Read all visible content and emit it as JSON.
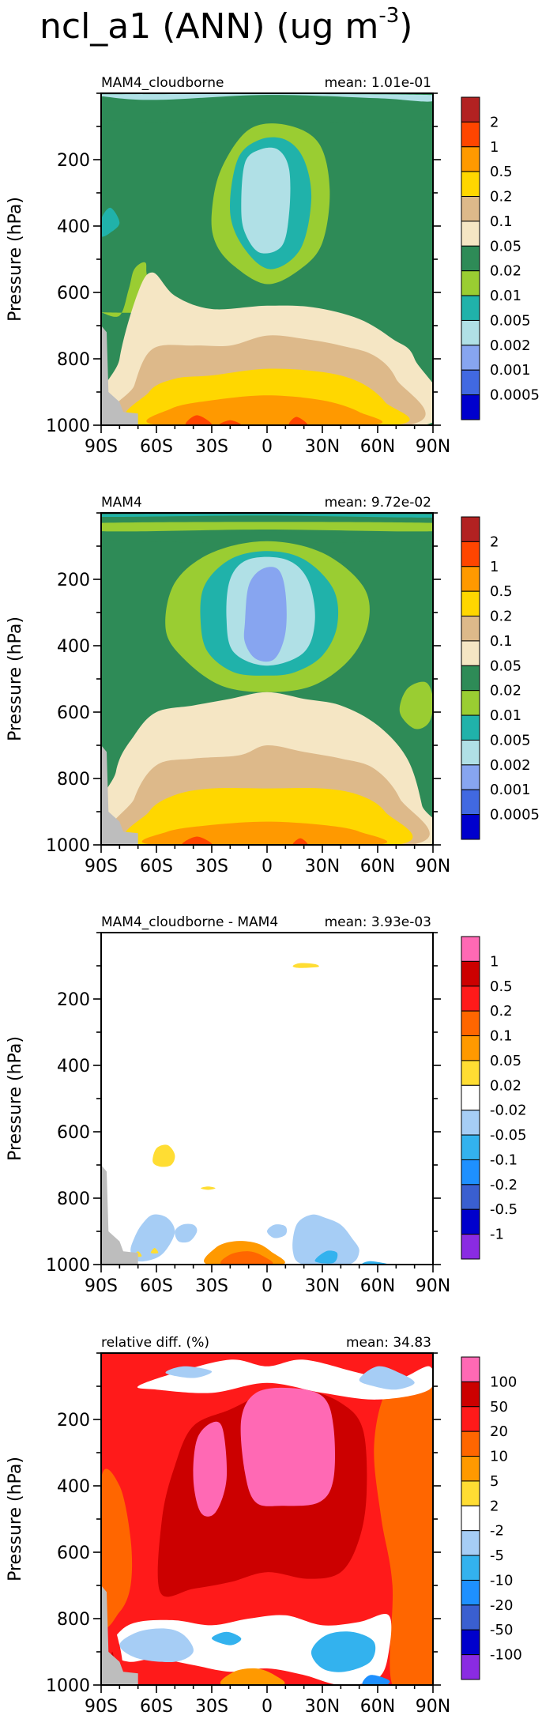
{
  "figure": {
    "title_main": "ncl_a1 (ANN) (ug m",
    "title_exp": "-3",
    "title_close": ")"
  },
  "shared_axes": {
    "ylabel": "Pressure (hPa)",
    "yticks": [
      200,
      400,
      600,
      800,
      1000
    ],
    "xticks": [
      "90S",
      "60S",
      "30S",
      "0",
      "30N",
      "60N",
      "90N"
    ]
  },
  "chart_data": [
    {
      "type": "contour",
      "subtitle_left": "MAM4_cloudborne",
      "subtitle_right": "mean: 1.01e-01",
      "xlabel": "",
      "ylabel": "Pressure (hPa)",
      "x_range": [
        "90S",
        "90N"
      ],
      "y_range": [
        1000,
        0
      ],
      "yticks": [
        200,
        400,
        600,
        800,
        1000
      ],
      "xticks": [
        "90S",
        "60S",
        "30S",
        "0",
        "30N",
        "60N",
        "90N"
      ],
      "colorbar_levels": [
        "2",
        "1",
        "0.5",
        "0.2",
        "0.1",
        "0.05",
        "0.02",
        "0.01",
        "0.005",
        "0.002",
        "0.001",
        "0.0005"
      ],
      "colorbar_colors": [
        "#b22222",
        "#ff4500",
        "#ff9900",
        "#ffd700",
        "#ddb98a",
        "#f5e6c4",
        "#2e8b57",
        "#9acd32",
        "#20b2aa",
        "#b0e0e6",
        "#87a5f0",
        "#4169e1",
        "#0000cd"
      ],
      "background_color": "#2e8b57"
    },
    {
      "type": "contour",
      "subtitle_left": "MAM4",
      "subtitle_right": "mean: 9.72e-02",
      "xlabel": "",
      "ylabel": "Pressure (hPa)",
      "x_range": [
        "90S",
        "90N"
      ],
      "y_range": [
        1000,
        0
      ],
      "yticks": [
        200,
        400,
        600,
        800,
        1000
      ],
      "xticks": [
        "90S",
        "60S",
        "30S",
        "0",
        "30N",
        "60N",
        "90N"
      ],
      "colorbar_levels": [
        "2",
        "1",
        "0.5",
        "0.2",
        "0.1",
        "0.05",
        "0.02",
        "0.01",
        "0.005",
        "0.002",
        "0.001",
        "0.0005"
      ],
      "colorbar_colors": [
        "#b22222",
        "#ff4500",
        "#ff9900",
        "#ffd700",
        "#ddb98a",
        "#f5e6c4",
        "#2e8b57",
        "#9acd32",
        "#20b2aa",
        "#b0e0e6",
        "#87a5f0",
        "#4169e1",
        "#0000cd"
      ],
      "background_color": "#2e8b57"
    },
    {
      "type": "contour",
      "subtitle_left": "MAM4_cloudborne - MAM4",
      "subtitle_right": "mean: 3.93e-03",
      "xlabel": "",
      "ylabel": "Pressure (hPa)",
      "x_range": [
        "90S",
        "90N"
      ],
      "y_range": [
        1000,
        0
      ],
      "yticks": [
        200,
        400,
        600,
        800,
        1000
      ],
      "xticks": [
        "90S",
        "60S",
        "30S",
        "0",
        "30N",
        "60N",
        "90N"
      ],
      "colorbar_levels": [
        "1",
        "0.5",
        "0.2",
        "0.1",
        "0.05",
        "0.02",
        "-0.02",
        "-0.05",
        "-0.1",
        "-0.2",
        "-0.5",
        "-1"
      ],
      "colorbar_colors": [
        "#ff69b4",
        "#cc0000",
        "#ff1a1a",
        "#ff6600",
        "#ff9900",
        "#ffdd33",
        "#ffffff",
        "#a6cdf5",
        "#33b2ee",
        "#1e90ff",
        "#3a5fd0",
        "#0000cc",
        "#8a2be2"
      ],
      "background_color": "#ffffff"
    },
    {
      "type": "contour",
      "subtitle_left": "relative diff. (%)",
      "subtitle_right": "mean: 34.83",
      "xlabel": "",
      "ylabel": "Pressure (hPa)",
      "x_range": [
        "90S",
        "90N"
      ],
      "y_range": [
        1000,
        0
      ],
      "yticks": [
        200,
        400,
        600,
        800,
        1000
      ],
      "xticks": [
        "90S",
        "60S",
        "30S",
        "0",
        "30N",
        "60N",
        "90N"
      ],
      "colorbar_levels": [
        "100",
        "50",
        "20",
        "10",
        "5",
        "2",
        "-2",
        "-5",
        "-10",
        "-20",
        "-50",
        "-100"
      ],
      "colorbar_colors": [
        "#ff69b4",
        "#cc0000",
        "#ff1a1a",
        "#ff6600",
        "#ff9900",
        "#ffdd33",
        "#ffffff",
        "#a6cdf5",
        "#33b2ee",
        "#1e90ff",
        "#3a5fd0",
        "#0000cc",
        "#8a2be2"
      ],
      "background_color": "#ff1a1a"
    }
  ]
}
